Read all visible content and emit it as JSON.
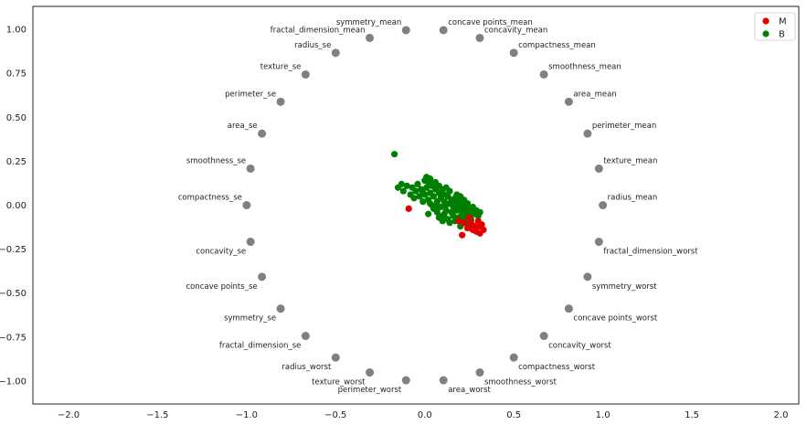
{
  "chart_data": {
    "type": "scatter",
    "title": "",
    "xlabel": "",
    "ylabel": "",
    "xlim": [
      -2.2,
      2.1
    ],
    "ylim": [
      -1.13,
      1.13
    ],
    "x_ticks": [
      -2.0,
      -1.5,
      -1.0,
      -0.5,
      0.0,
      0.5,
      1.0,
      1.5,
      2.0
    ],
    "x_tick_labels": [
      "−2.0",
      "−1.5",
      "−1.0",
      "−0.5",
      "0.0",
      "0.5",
      "1.0",
      "1.5",
      "2.0"
    ],
    "y_ticks": [
      1.0,
      0.75,
      0.5,
      0.25,
      0.0,
      -0.25,
      -0.5,
      -0.75,
      -1.0
    ],
    "y_tick_labels": [
      "1.00",
      "0.75",
      "0.50",
      "0.25",
      "0.00",
      "−0.25",
      "−0.50",
      "−0.75",
      "−1.00"
    ],
    "grid": false,
    "legend": {
      "position": "top-right",
      "entries": [
        {
          "name": "M",
          "color": "#e50000"
        },
        {
          "name": "B",
          "color": "#007f00"
        }
      ]
    },
    "anchor_color": "#808080",
    "anchors": [
      {
        "name": "radius_mean",
        "x": 1.0,
        "y": 0.0
      },
      {
        "name": "texture_mean",
        "x": 0.978,
        "y": 0.208
      },
      {
        "name": "perimeter_mean",
        "x": 0.914,
        "y": 0.407
      },
      {
        "name": "area_mean",
        "x": 0.809,
        "y": 0.588
      },
      {
        "name": "smoothness_mean",
        "x": 0.669,
        "y": 0.743
      },
      {
        "name": "compactness_mean",
        "x": 0.5,
        "y": 0.866
      },
      {
        "name": "concavity_mean",
        "x": 0.309,
        "y": 0.951
      },
      {
        "name": "concave points_mean",
        "x": 0.105,
        "y": 0.995
      },
      {
        "name": "symmetry_mean",
        "x": -0.105,
        "y": 0.995
      },
      {
        "name": "fractal_dimension_mean",
        "x": -0.309,
        "y": 0.951
      },
      {
        "name": "radius_se",
        "x": -0.5,
        "y": 0.866
      },
      {
        "name": "texture_se",
        "x": -0.669,
        "y": 0.743
      },
      {
        "name": "perimeter_se",
        "x": -0.809,
        "y": 0.588
      },
      {
        "name": "area_se",
        "x": -0.914,
        "y": 0.407
      },
      {
        "name": "smoothness_se",
        "x": -0.978,
        "y": 0.208
      },
      {
        "name": "compactness_se",
        "x": -1.0,
        "y": 0.0
      },
      {
        "name": "concavity_se",
        "x": -0.978,
        "y": -0.208
      },
      {
        "name": "concave points_se",
        "x": -0.914,
        "y": -0.407
      },
      {
        "name": "symmetry_se",
        "x": -0.809,
        "y": -0.588
      },
      {
        "name": "fractal_dimension_se",
        "x": -0.669,
        "y": -0.743
      },
      {
        "name": "radius_worst",
        "x": -0.5,
        "y": -0.866
      },
      {
        "name": "texture_worst",
        "x": -0.309,
        "y": -0.951
      },
      {
        "name": "perimeter_worst",
        "x": -0.105,
        "y": -0.995
      },
      {
        "name": "area_worst",
        "x": 0.105,
        "y": -0.995
      },
      {
        "name": "smoothness_worst",
        "x": 0.309,
        "y": -0.951
      },
      {
        "name": "compactness_worst",
        "x": 0.5,
        "y": -0.866
      },
      {
        "name": "concavity_worst",
        "x": 0.669,
        "y": -0.743
      },
      {
        "name": "concave points_worst",
        "x": 0.809,
        "y": -0.588
      },
      {
        "name": "symmetry_worst",
        "x": 0.914,
        "y": -0.407
      },
      {
        "name": "fractal_dimension_worst",
        "x": 0.978,
        "y": -0.208
      }
    ],
    "series": [
      {
        "name": "M",
        "color": "#e50000",
        "points": [
          [
            0.21,
            -0.17
          ],
          [
            0.33,
            -0.14
          ],
          [
            -0.09,
            -0.02
          ],
          [
            0.31,
            -0.12
          ],
          [
            0.29,
            -0.15
          ],
          [
            0.26,
            -0.1
          ],
          [
            0.24,
            -0.13
          ],
          [
            0.3,
            -0.09
          ],
          [
            0.32,
            -0.11
          ],
          [
            0.28,
            -0.12
          ],
          [
            0.22,
            -0.1
          ],
          [
            0.27,
            -0.14
          ],
          [
            0.25,
            -0.07
          ],
          [
            0.19,
            -0.09
          ],
          [
            0.31,
            -0.16
          ]
        ]
      },
      {
        "name": "B",
        "color": "#007f00",
        "points": [
          [
            -0.17,
            0.29
          ],
          [
            -0.15,
            0.1
          ],
          [
            -0.13,
            0.12
          ],
          [
            -0.12,
            0.08
          ],
          [
            -0.1,
            0.11
          ],
          [
            -0.08,
            0.06
          ],
          [
            -0.07,
            0.1
          ],
          [
            -0.06,
            0.04
          ],
          [
            -0.05,
            0.08
          ],
          [
            -0.04,
            0.12
          ],
          [
            -0.03,
            0.05
          ],
          [
            -0.02,
            0.09
          ],
          [
            -0.01,
            0.02
          ],
          [
            0.0,
            0.14
          ],
          [
            0.0,
            0.06
          ],
          [
            0.01,
            0.16
          ],
          [
            0.01,
            0.1
          ],
          [
            0.02,
            0.03
          ],
          [
            0.02,
            0.13
          ],
          [
            0.03,
            0.07
          ],
          [
            0.03,
            0.15
          ],
          [
            0.04,
            0.0
          ],
          [
            0.04,
            0.11
          ],
          [
            0.05,
            0.05
          ],
          [
            0.05,
            -0.02
          ],
          [
            0.06,
            0.09
          ],
          [
            0.06,
            0.13
          ],
          [
            0.07,
            0.02
          ],
          [
            0.07,
            -0.04
          ],
          [
            0.08,
            0.07
          ],
          [
            0.08,
            0.11
          ],
          [
            0.09,
            -0.01
          ],
          [
            0.09,
            0.04
          ],
          [
            0.1,
            0.09
          ],
          [
            0.1,
            -0.06
          ],
          [
            0.11,
            0.02
          ],
          [
            0.11,
            0.06
          ],
          [
            0.12,
            -0.03
          ],
          [
            0.12,
            0.0
          ],
          [
            0.13,
            0.05
          ],
          [
            0.13,
            -0.08
          ],
          [
            0.14,
            0.01
          ],
          [
            0.14,
            0.08
          ],
          [
            0.15,
            -0.04
          ],
          [
            0.15,
            0.03
          ],
          [
            0.16,
            -0.01
          ],
          [
            0.16,
            -0.06
          ],
          [
            0.17,
            0.04
          ],
          [
            0.17,
            -0.09
          ],
          [
            0.18,
            0.0
          ],
          [
            0.18,
            -0.03
          ],
          [
            0.19,
            0.02
          ],
          [
            0.19,
            -0.07
          ],
          [
            0.2,
            -0.02
          ],
          [
            0.2,
            0.05
          ],
          [
            0.21,
            -0.05
          ],
          [
            0.21,
            0.0
          ],
          [
            0.22,
            -0.08
          ],
          [
            0.22,
            0.03
          ],
          [
            0.23,
            -0.03
          ],
          [
            0.23,
            -0.1
          ],
          [
            0.24,
            0.01
          ],
          [
            0.24,
            -0.06
          ],
          [
            0.25,
            -0.02
          ],
          [
            0.26,
            -0.04
          ],
          [
            0.26,
            -0.08
          ],
          [
            0.27,
            -0.01
          ],
          [
            0.28,
            -0.05
          ],
          [
            0.29,
            -0.03
          ],
          [
            0.3,
            -0.06
          ],
          [
            0.31,
            -0.04
          ],
          [
            0.14,
            -0.1
          ],
          [
            0.1,
            -0.09
          ],
          [
            0.05,
            0.12
          ],
          [
            -0.01,
            0.07
          ],
          [
            0.02,
            -0.05
          ],
          [
            0.18,
            0.06
          ],
          [
            0.25,
            -0.11
          ],
          [
            0.2,
            -0.12
          ],
          [
            0.12,
            0.1
          ],
          [
            0.08,
            -0.07
          ],
          [
            0.03,
            0.01
          ],
          [
            0.16,
            0.02
          ],
          [
            0.06,
            -0.01
          ],
          [
            0.22,
            -0.01
          ],
          [
            0.11,
            -0.05
          ]
        ]
      }
    ]
  }
}
